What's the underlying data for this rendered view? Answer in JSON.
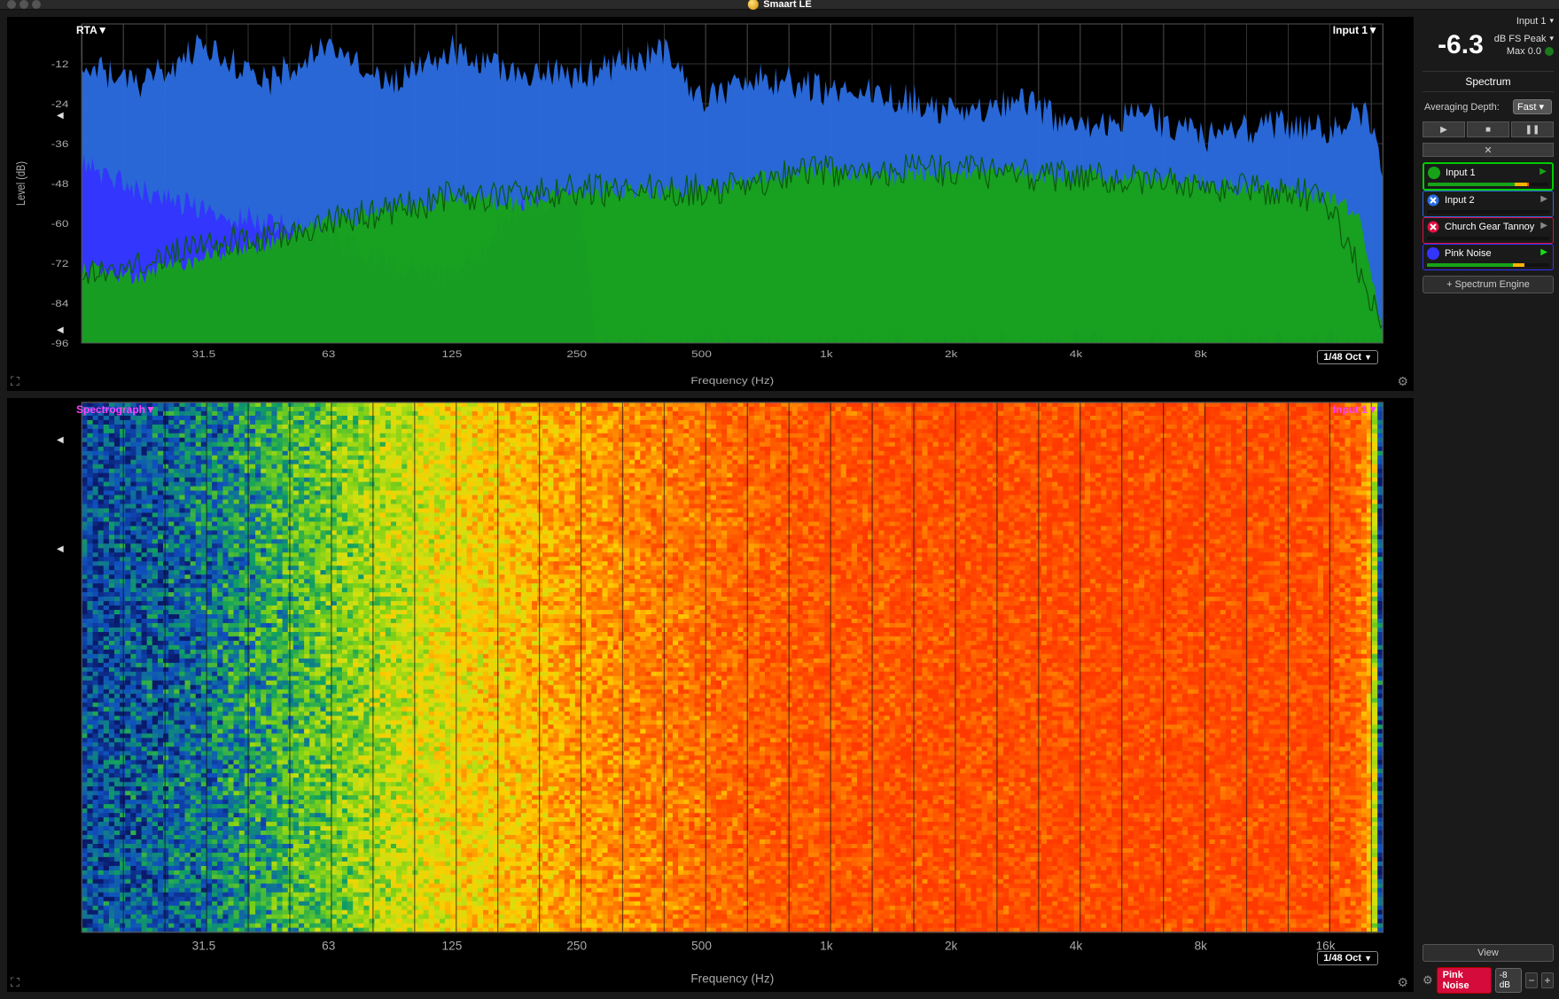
{
  "window": {
    "title": "Smaart LE"
  },
  "meter": {
    "input_label": "Input 1",
    "value": "-6.3",
    "mode": "dB FS Peak",
    "max_label": "Max 0.0",
    "status_color": "#1c7a1c"
  },
  "side": {
    "section": "Spectrum",
    "avg_label": "Averaging Depth:",
    "avg_value": "Fast",
    "add_engine": "+ Spectrum Engine",
    "view": "View",
    "pink": "Pink Noise",
    "pink_db": "-8 dB"
  },
  "inputs": [
    {
      "name": "Input 1",
      "color": "#17a317",
      "active": true,
      "icon": "circle",
      "play_color": "#17a317",
      "bar": [
        [
          0,
          0.72,
          "#17a317"
        ],
        [
          0.72,
          0.82,
          "#ffb400"
        ],
        [
          0.82,
          0.84,
          "#ff4d00"
        ]
      ]
    },
    {
      "name": "Input 2",
      "color": "#2a6de0",
      "active": false,
      "icon": "x-blue",
      "play_color": "#888",
      "bar": []
    },
    {
      "name": "Church Gear Tannoy",
      "color": "#e01040",
      "active": false,
      "icon": "x-red",
      "play_color": "#888",
      "bar": []
    },
    {
      "name": "Pink Noise",
      "color": "#3434ff",
      "active": false,
      "icon": "circle",
      "play_color": "#17e017",
      "bar": [
        [
          0,
          0.7,
          "#17a317"
        ],
        [
          0.7,
          0.8,
          "#ffb400"
        ]
      ]
    }
  ],
  "rta": {
    "type": "spectrum-rta",
    "mode_label": "RTA",
    "source_label": "Input 1",
    "oct_label": "1/48 Oct",
    "ylabel": "Level (dB)",
    "xlabel": "Frequency (Hz)",
    "ylim": [
      -96,
      0
    ],
    "yticks": [
      -12,
      -24,
      -36,
      -48,
      -60,
      -72,
      -84,
      -96
    ],
    "xticks": [
      31.5,
      63,
      125,
      250,
      500,
      1000,
      2000,
      4000,
      8000,
      16000
    ],
    "xtick_labels": [
      "31.5",
      "63",
      "125",
      "250",
      "500",
      "1k",
      "2k",
      "4k",
      "8k",
      "16k"
    ],
    "freq_min": 16,
    "freq_max": 22000,
    "background": "#000000",
    "grid_color": "#333333",
    "marker_left_positions_db": [
      -32,
      -93
    ],
    "series": [
      {
        "name": "peak-wide",
        "color": "#2a6de0",
        "style": "area",
        "baseline_db": [
          [
            16,
            -12
          ],
          [
            22,
            -18
          ],
          [
            31.5,
            -6
          ],
          [
            45,
            -18
          ],
          [
            63,
            -4
          ],
          [
            90,
            -18
          ],
          [
            125,
            -8
          ],
          [
            180,
            -14
          ],
          [
            250,
            -16
          ],
          [
            400,
            -8
          ],
          [
            500,
            -22
          ],
          [
            700,
            -16
          ],
          [
            1000,
            -20
          ],
          [
            1500,
            -22
          ],
          [
            2000,
            -26
          ],
          [
            3000,
            -24
          ],
          [
            4000,
            -30
          ],
          [
            6000,
            -28
          ],
          [
            8000,
            -34
          ],
          [
            12000,
            -30
          ],
          [
            16000,
            -32
          ],
          [
            20000,
            -26
          ],
          [
            22000,
            -44
          ]
        ],
        "jitter_db": 5
      },
      {
        "name": "peak-narrow",
        "color": "#3434ff",
        "style": "area",
        "baseline_db": [
          [
            16,
            -42
          ],
          [
            22,
            -50
          ],
          [
            31.5,
            -56
          ],
          [
            45,
            -60
          ],
          [
            63,
            -64
          ],
          [
            90,
            -72
          ],
          [
            125,
            -76
          ],
          [
            180,
            -56
          ],
          [
            250,
            -50
          ],
          [
            280,
            -96
          ],
          [
            350,
            -96
          ],
          [
            500,
            -96
          ]
        ],
        "jitter_db": 4
      },
      {
        "name": "rms-green",
        "color": "#17a317",
        "style": "area",
        "baseline_db": [
          [
            16,
            -74
          ],
          [
            22,
            -76
          ],
          [
            31.5,
            -70
          ],
          [
            45,
            -66
          ],
          [
            63,
            -60
          ],
          [
            90,
            -56
          ],
          [
            125,
            -52
          ],
          [
            180,
            -54
          ],
          [
            250,
            -50
          ],
          [
            400,
            -50
          ],
          [
            500,
            -50
          ],
          [
            700,
            -46
          ],
          [
            1000,
            -44
          ],
          [
            1500,
            -46
          ],
          [
            2000,
            -44
          ],
          [
            3000,
            -45
          ],
          [
            4000,
            -46
          ],
          [
            6000,
            -46
          ],
          [
            8000,
            -48
          ],
          [
            12000,
            -50
          ],
          [
            16000,
            -52
          ],
          [
            19000,
            -56
          ],
          [
            21000,
            -80
          ],
          [
            22000,
            -96
          ]
        ],
        "jitter_db": 3
      },
      {
        "name": "rms-line",
        "color": "#0b5c0b",
        "style": "line",
        "baseline_db": [
          [
            16,
            -74
          ],
          [
            63,
            -60
          ],
          [
            125,
            -52
          ],
          [
            250,
            -50
          ],
          [
            500,
            -50
          ],
          [
            1000,
            -44
          ],
          [
            2000,
            -44
          ],
          [
            4000,
            -46
          ],
          [
            8000,
            -48
          ],
          [
            16000,
            -52
          ],
          [
            22000,
            -90
          ]
        ],
        "jitter_db": 5
      }
    ]
  },
  "spectro": {
    "type": "spectrogram",
    "mode_label": "Spectrograph",
    "source_label": "Input 1",
    "oct_label": "1/48 Oct",
    "xlabel": "Frequency (Hz)",
    "xticks": [
      31.5,
      63,
      125,
      250,
      500,
      1000,
      2000,
      4000,
      8000,
      16000
    ],
    "xtick_labels": [
      "31.5",
      "63",
      "125",
      "250",
      "500",
      "1k",
      "2k",
      "4k",
      "8k",
      "16k"
    ],
    "freq_min": 16,
    "freq_max": 22000,
    "grid_color": "#111111",
    "colormap": [
      "#0a1a6a",
      "#1050c0",
      "#10a060",
      "#7ad018",
      "#d0e010",
      "#ffcc00",
      "#ff8a00",
      "#ff5a00",
      "#ff3a00"
    ],
    "rows": 120,
    "marker_labels_color": "#ff40ff",
    "level_by_freq_db": [
      [
        16,
        -72
      ],
      [
        22,
        -70
      ],
      [
        31.5,
        -66
      ],
      [
        45,
        -58
      ],
      [
        63,
        -50
      ],
      [
        90,
        -42
      ],
      [
        125,
        -34
      ],
      [
        180,
        -28
      ],
      [
        250,
        -22
      ],
      [
        400,
        -16
      ],
      [
        500,
        -14
      ],
      [
        700,
        -10
      ],
      [
        1000,
        -8
      ],
      [
        1500,
        -7
      ],
      [
        2000,
        -6
      ],
      [
        3000,
        -6
      ],
      [
        4000,
        -5
      ],
      [
        6000,
        -5
      ],
      [
        8000,
        -5
      ],
      [
        12000,
        -5
      ],
      [
        16000,
        -6
      ],
      [
        19000,
        -10
      ],
      [
        20500,
        -20
      ],
      [
        21500,
        -45
      ],
      [
        22000,
        -72
      ]
    ],
    "level_range_db": [
      -80,
      0
    ],
    "jitter_db": 10
  },
  "colors": {
    "bg": "#1a1a1a",
    "panel": "#000000",
    "text": "#cccccc"
  }
}
